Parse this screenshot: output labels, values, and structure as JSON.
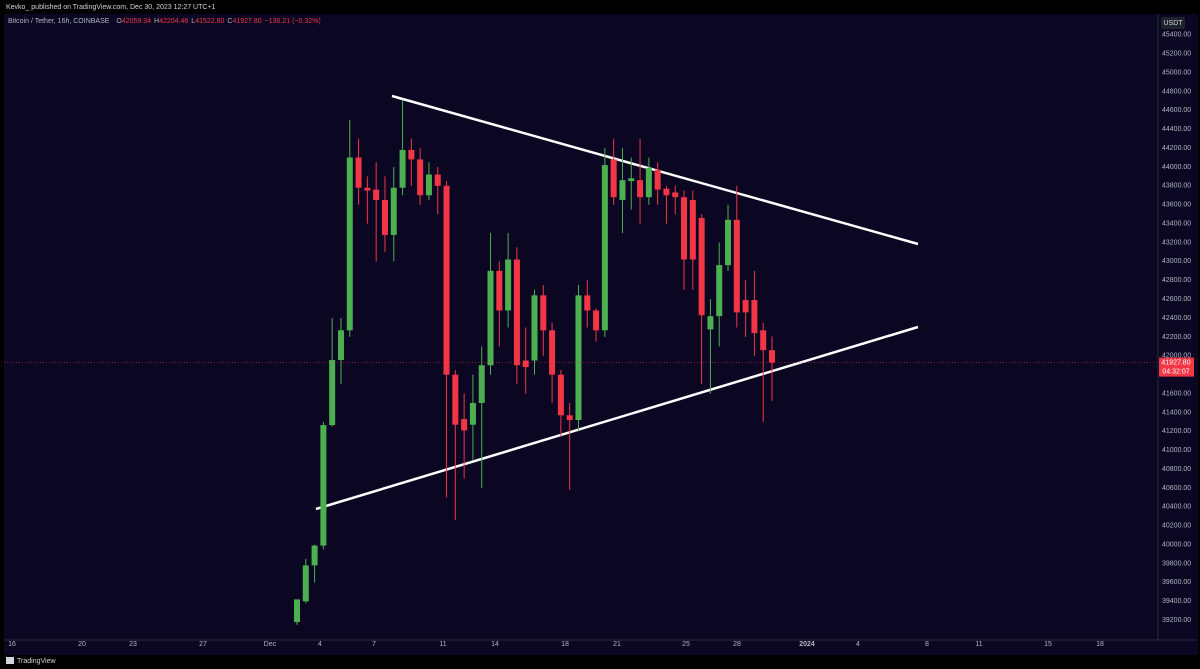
{
  "header": {
    "byline": "Kevko_ published on TradingView.com, Dec 30, 2023 12:27 UTC+1"
  },
  "chart_data": {
    "type": "candlestick",
    "symbol": "Bitcoin / Tether, 16h, COINBASE",
    "ohlc_labels": [
      "O",
      "H",
      "L",
      "C"
    ],
    "ohlc_value_labels": [
      "42059.34",
      "42204.46",
      "41522.80",
      "41927.80"
    ],
    "change": "−136.21 (−0.32%)",
    "currency": "USDT",
    "countdown": "04:32:07",
    "up_color": "#4caf50",
    "down_color": "#f23645",
    "grid": false,
    "open": [
      39180,
      39400,
      39780,
      39990,
      41266,
      41955,
      42270,
      44100,
      43780,
      43760,
      43650,
      43280,
      43780,
      44180,
      44080,
      43700,
      43920,
      43800,
      41800,
      41330,
      41270,
      41500,
      41900,
      42900,
      42480,
      43020,
      41950,
      41950,
      42640,
      42270,
      41800,
      41370,
      41320,
      42640,
      42480,
      42270,
      44080,
      43650,
      43850,
      43860,
      43680,
      43970,
      43770,
      43730,
      43680,
      43650,
      43460,
      42280,
      42420,
      42960,
      43440,
      42590,
      42590,
      42270,
      42059.34
    ],
    "high": [
      39420,
      39850,
      40000,
      41300,
      42400,
      42400,
      44500,
      44300,
      43900,
      44050,
      43900,
      44000,
      44710,
      44300,
      44200,
      44050,
      44000,
      43850,
      41850,
      41600,
      41800,
      42100,
      43300,
      43000,
      43300,
      43150,
      42300,
      42700,
      42750,
      42350,
      41850,
      41500,
      42750,
      42800,
      42500,
      44200,
      44300,
      44200,
      44100,
      44300,
      44100,
      44050,
      43800,
      43800,
      43750,
      43750,
      43500,
      42600,
      43200,
      43600,
      43800,
      42800,
      42900,
      42350,
      42204.46
    ],
    "low": [
      39150,
      39380,
      39600,
      39950,
      41250,
      41700,
      42200,
      43600,
      43400,
      43000,
      43100,
      43000,
      43700,
      43800,
      43600,
      43650,
      43500,
      40500,
      40260,
      40700,
      40900,
      40600,
      41800,
      42100,
      42300,
      41700,
      41600,
      41800,
      42000,
      41500,
      41150,
      40580,
      41200,
      42300,
      42150,
      42200,
      43600,
      43300,
      43550,
      43400,
      43600,
      43600,
      43400,
      43500,
      42700,
      42700,
      41700,
      41600,
      42100,
      42900,
      42300,
      42200,
      42000,
      41300,
      41522.8
    ],
    "close": [
      39420,
      39780,
      39990,
      41266,
      41955,
      42270,
      44100,
      43780,
      43750,
      43650,
      43280,
      43780,
      44180,
      44080,
      43700,
      43920,
      43800,
      41800,
      41270,
      41210,
      41500,
      41900,
      42900,
      42480,
      43020,
      41900,
      41880,
      42640,
      42270,
      41800,
      41370,
      41320,
      42640,
      42480,
      42270,
      44020,
      43680,
      43860,
      43880,
      43680,
      43990,
      43760,
      43700,
      43680,
      43020,
      43020,
      42430,
      42420,
      42960,
      43440,
      42460,
      42460,
      42240,
      42060,
      41927.8
    ],
    "ylim": [
      38990,
      45620
    ],
    "yticks": [
      {
        "value": 45400,
        "label": "45400.00"
      },
      {
        "value": 45200,
        "label": "45200.00"
      },
      {
        "value": 45000,
        "label": "45000.00"
      },
      {
        "value": 44800,
        "label": "44800.00"
      },
      {
        "value": 44600,
        "label": "44600.00"
      },
      {
        "value": 44400,
        "label": "44400.00"
      },
      {
        "value": 44200,
        "label": "44200.00"
      },
      {
        "value": 44000,
        "label": "44000.00"
      },
      {
        "value": 43800,
        "label": "43800.00"
      },
      {
        "value": 43600,
        "label": "43600.00"
      },
      {
        "value": 43400,
        "label": "43400.00"
      },
      {
        "value": 43200,
        "label": "43200.00"
      },
      {
        "value": 43000,
        "label": "43000.00"
      },
      {
        "value": 42800,
        "label": "42800.00"
      },
      {
        "value": 42600,
        "label": "42600.00"
      },
      {
        "value": 42400,
        "label": "42400.00"
      },
      {
        "value": 42200,
        "label": "42200.00"
      },
      {
        "value": 42000,
        "label": "42000.00"
      },
      {
        "value": 41800,
        "label": "41800.00"
      },
      {
        "value": 41600,
        "label": "41600.00"
      },
      {
        "value": 41400,
        "label": "41400.00"
      },
      {
        "value": 41200,
        "label": "41200.00"
      },
      {
        "value": 41000,
        "label": "41000.00"
      },
      {
        "value": 40800,
        "label": "40800.00"
      },
      {
        "value": 40600,
        "label": "40600.00"
      },
      {
        "value": 40400,
        "label": "40400.00"
      },
      {
        "value": 40200,
        "label": "40200.00"
      },
      {
        "value": 40000,
        "label": "40000.00"
      },
      {
        "value": 39800,
        "label": "39800.00"
      },
      {
        "value": 39600,
        "label": "39600.00"
      },
      {
        "value": 39400,
        "label": "39400.00"
      },
      {
        "value": 39200,
        "label": "39200.00"
      }
    ],
    "xticks": [
      "16",
      "20",
      "23",
      "27",
      "Dec",
      "4",
      "7",
      "11",
      "14",
      "18",
      "21",
      "25",
      "28",
      "2024",
      "4",
      "8",
      "11",
      "15",
      "18"
    ]
  },
  "footer": {
    "brand": "TradingView"
  }
}
